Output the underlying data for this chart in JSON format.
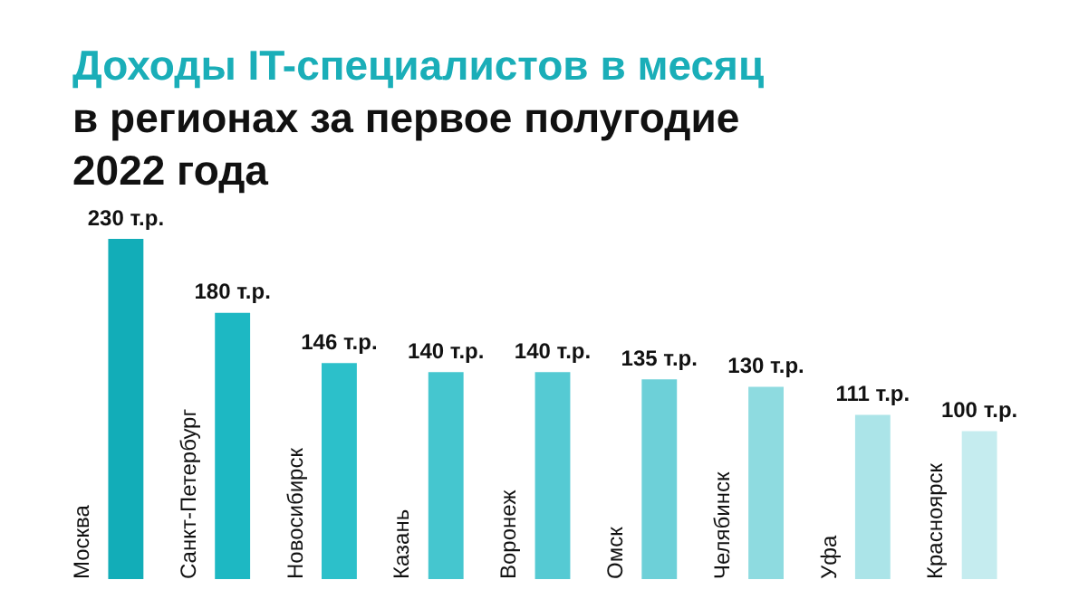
{
  "chart_data": {
    "type": "bar",
    "title": "Доходы IT-специалистов в месяц",
    "subtitle": "в регионах за первое полугодие 2022 года",
    "categories": [
      "Москва",
      "Санкт-Петербург",
      "Новосибирск",
      "Казань",
      "Воронеж",
      "Омск",
      "Челябинск",
      "Уфа",
      "Красноярск"
    ],
    "values": [
      230,
      180,
      146,
      140,
      140,
      135,
      130,
      111,
      100
    ],
    "colors": [
      "#12adb8",
      "#1db8c3",
      "#2cc0ca",
      "#45c6cf",
      "#55cad3",
      "#6dd0d8",
      "#8edbe0",
      "#abe4e8",
      "#c5ecef"
    ],
    "value_labels": [
      "230 т.р.",
      "180 т.р.",
      "146 т.р.",
      "140 т.р.",
      "140 т.р.",
      "135 т.р.",
      "130 т.р.",
      "111 т.р.",
      "100 т.р."
    ]
  }
}
